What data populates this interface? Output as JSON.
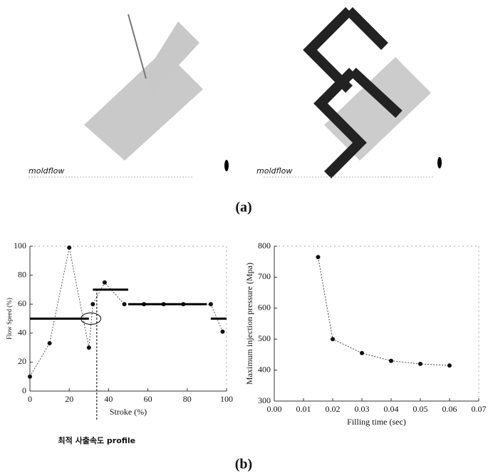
{
  "panel_a": {
    "logos": [
      "moldflow",
      "moldflow"
    ],
    "caption": "(a)"
  },
  "panel_b": {
    "caption": "(b)"
  },
  "chart_data": [
    {
      "type": "line",
      "xlabel": "Stroke (%)",
      "ylabel": "Flow Speed (%)",
      "annotation": "최적 사출속도 profile",
      "xlim": [
        0,
        100
      ],
      "xticks": [
        0,
        20,
        40,
        60,
        80,
        100
      ],
      "ylim": [
        0,
        100
      ],
      "yticks": [
        0,
        20,
        40,
        60,
        80,
        100
      ],
      "series": [
        {
          "color": "#555555",
          "markers": true,
          "line_width": 1,
          "x": [
            0,
            10,
            20,
            30,
            32,
            38,
            48,
            58,
            68,
            78,
            92,
            98
          ],
          "values": [
            10,
            33,
            99,
            30,
            60,
            75,
            60,
            60,
            60,
            60,
            60,
            41
          ]
        },
        {
          "color": "#000000",
          "markers": false,
          "line_width": 3,
          "x": [
            0,
            30,
            31,
            32,
            50,
            50,
            50,
            90,
            91,
            92,
            100
          ],
          "values": [
            50,
            50,
            null,
            70,
            70,
            null,
            60,
            60,
            null,
            50,
            50
          ]
        }
      ]
    },
    {
      "type": "line",
      "xlabel": "Filling time (sec)",
      "ylabel": "Maximum injection pressure (Mpa)",
      "xlim": [
        0,
        0.07
      ],
      "xticks": [
        {
          "value": 0,
          "label": "0.00"
        },
        {
          "value": 0.01,
          "label": "0.01"
        },
        {
          "value": 0.02,
          "label": "0.02"
        },
        {
          "value": 0.03,
          "label": "0.03"
        },
        {
          "value": 0.04,
          "label": "0.04"
        },
        {
          "value": 0.05,
          "label": "0.05"
        },
        {
          "value": 0.06,
          "label": "0.06"
        },
        {
          "value": 0.07,
          "label": "0.07"
        }
      ],
      "ylim": [
        300,
        800
      ],
      "yticks": [
        300,
        400,
        500,
        600,
        700,
        800
      ],
      "series": [
        {
          "color": "#444444",
          "markers": true,
          "line_width": 1,
          "x": [
            0.015,
            0.02,
            0.03,
            0.04,
            0.05,
            0.06
          ],
          "values": [
            765,
            500,
            455,
            430,
            420,
            415
          ]
        }
      ]
    }
  ]
}
